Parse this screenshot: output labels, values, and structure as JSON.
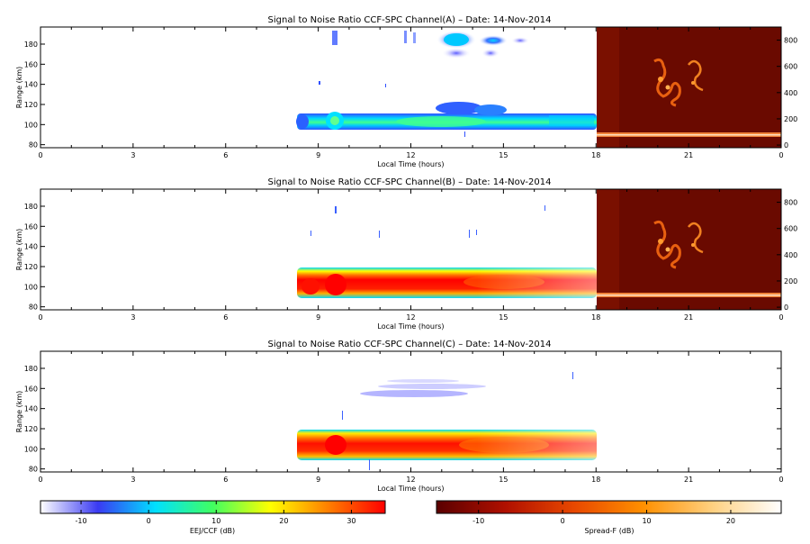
{
  "chart_data": [
    {
      "type": "heatmap",
      "title": "Signal to Noise Ratio CCF-SPC Channel(A) – Date: 14-Nov-2014",
      "xlabel": "Local Time (hours)",
      "ylabel": "Range (km)",
      "xlim": [
        0,
        24
      ],
      "ylim": [
        77,
        197
      ],
      "x_ticks": [
        "0",
        "3",
        "6",
        "9",
        "12",
        "15",
        "18",
        "21",
        "0"
      ],
      "y_ticks": [
        80,
        100,
        120,
        140,
        160,
        180
      ],
      "right_ticks": [
        "0",
        "200",
        "400",
        "600",
        "800"
      ],
      "right_ylim": [
        -20,
        900
      ],
      "data_window_hours": [
        8.3,
        18
      ],
      "inset_window_hours": [
        18,
        24
      ],
      "features": [
        {
          "t0": 8.3,
          "t1": 18.0,
          "range_low": 97,
          "range_high": 110,
          "snr_db": 8
        },
        {
          "t0": 12.8,
          "t1": 15.0,
          "range_low": 170,
          "range_high": 188,
          "snr_db": 2
        },
        {
          "t0": 9.3,
          "t1": 9.6,
          "range_low": 178,
          "range_high": 190,
          "snr_db": -2
        }
      ]
    },
    {
      "type": "heatmap",
      "title": "Signal to Noise Ratio CCF-SPC Channel(B) – Date: 14-Nov-2014",
      "xlabel": "Local Time (hours)",
      "ylabel": "Range (km)",
      "xlim": [
        0,
        24
      ],
      "ylim": [
        77,
        197
      ],
      "x_ticks": [
        "0",
        "3",
        "6",
        "9",
        "12",
        "15",
        "18",
        "21",
        "0"
      ],
      "y_ticks": [
        80,
        100,
        120,
        140,
        160,
        180
      ],
      "right_ticks": [
        "0",
        "200",
        "400",
        "600",
        "800"
      ],
      "right_ylim": [
        -20,
        900
      ],
      "data_window_hours": [
        8.3,
        18
      ],
      "inset_window_hours": [
        18,
        24
      ],
      "features": [
        {
          "t0": 8.3,
          "t1": 18.0,
          "range_low": 93,
          "range_high": 118,
          "snr_db": 30
        }
      ]
    },
    {
      "type": "heatmap",
      "title": "Signal to Noise Ratio CCF-SPC Channel(C) – Date: 14-Nov-2014",
      "xlabel": "Local Time (hours)",
      "ylabel": "Range (km)",
      "xlim": [
        0,
        24
      ],
      "ylim": [
        77,
        197
      ],
      "x_ticks": [
        "0",
        "3",
        "6",
        "9",
        "12",
        "15",
        "18",
        "21",
        "0"
      ],
      "y_ticks": [
        80,
        100,
        120,
        140,
        160,
        180
      ],
      "data_window_hours": [
        8.3,
        18
      ],
      "features": [
        {
          "t0": 8.3,
          "t1": 18.0,
          "range_low": 93,
          "range_high": 120,
          "snr_db": 28
        },
        {
          "t0": 9.0,
          "t1": 14.5,
          "range_low": 142,
          "range_high": 168,
          "snr_db": -5
        }
      ]
    }
  ],
  "colorbars": [
    {
      "label": "EEJ/CCF (dB)",
      "ticks": [
        "-10",
        "0",
        "10",
        "20",
        "30"
      ],
      "range": [
        -16,
        35
      ],
      "colors": [
        "#ffffff",
        "#3a3af2",
        "#00e0ff",
        "#40ff60",
        "#ffff00",
        "#ff8000",
        "#ff0000"
      ]
    },
    {
      "label": "Spread-F (dB)",
      "ticks": [
        "-10",
        "0",
        "10",
        "20"
      ],
      "range": [
        -15,
        26
      ],
      "colors": [
        "#5a0000",
        "#b01000",
        "#e84800",
        "#ff9000",
        "#ffd080",
        "#ffffff"
      ]
    }
  ]
}
